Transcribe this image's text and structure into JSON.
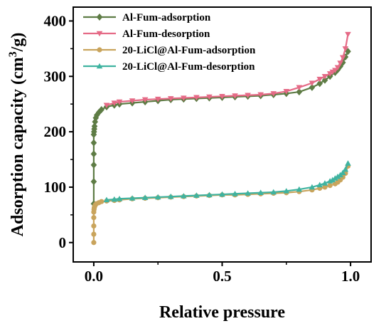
{
  "chart_data": {
    "type": "line",
    "xlabel": "Relative pressure",
    "ylabel_main": "Adsorption capacity (cm",
    "ylabel_sup": "3",
    "ylabel_tail": "/g)",
    "xlim": [
      -0.08,
      1.08
    ],
    "ylim": [
      -35,
      425
    ],
    "xticks": [
      0.0,
      0.5,
      1.0
    ],
    "xtick_labels": [
      "0.0",
      "0.5",
      "1.0"
    ],
    "yticks": [
      0,
      100,
      200,
      300,
      400
    ],
    "ytick_labels": [
      "0",
      "100",
      "200",
      "300",
      "400"
    ],
    "grid": false,
    "legend_position": "top-left",
    "series": [
      {
        "name": "Al-Fum-adsorption",
        "color": "#5e7c45",
        "marker": "diamond",
        "x": [
          0.0,
          0.0,
          0.0,
          0.0,
          0.0,
          0.0,
          0.001,
          0.002,
          0.003,
          0.005,
          0.008,
          0.012,
          0.02,
          0.03,
          0.05,
          0.08,
          0.1,
          0.15,
          0.2,
          0.25,
          0.3,
          0.35,
          0.4,
          0.45,
          0.5,
          0.55,
          0.6,
          0.65,
          0.7,
          0.75,
          0.8,
          0.85,
          0.88,
          0.9,
          0.92,
          0.94,
          0.95,
          0.96,
          0.97,
          0.98,
          0.99
        ],
        "y": [
          70,
          110,
          140,
          160,
          180,
          195,
          200,
          205,
          210,
          218,
          225,
          230,
          235,
          240,
          245,
          248,
          250,
          252,
          254,
          256,
          258,
          259,
          260,
          261,
          262,
          263,
          264,
          265,
          267,
          269,
          272,
          280,
          287,
          293,
          300,
          307,
          312,
          318,
          325,
          335,
          345
        ]
      },
      {
        "name": "Al-Fum-desorption",
        "color": "#e56a86",
        "marker": "triangle-down",
        "x": [
          0.99,
          0.98,
          0.97,
          0.96,
          0.95,
          0.94,
          0.93,
          0.92,
          0.9,
          0.88,
          0.85,
          0.8,
          0.75,
          0.7,
          0.65,
          0.6,
          0.55,
          0.5,
          0.45,
          0.4,
          0.35,
          0.3,
          0.25,
          0.2,
          0.15,
          0.1,
          0.08,
          0.05
        ],
        "y": [
          376,
          350,
          334,
          324,
          316,
          311,
          308,
          305,
          300,
          295,
          288,
          280,
          273,
          269,
          267,
          266,
          265,
          264,
          263,
          262,
          261,
          260,
          259,
          258,
          256,
          254,
          252,
          248
        ]
      },
      {
        "name": "20-LiCl@Al-Fum-adsorption",
        "color": "#c9a45c",
        "marker": "circle",
        "x": [
          0.0,
          0.0,
          0.0,
          0.0,
          0.0,
          0.001,
          0.002,
          0.004,
          0.006,
          0.01,
          0.02,
          0.03,
          0.05,
          0.08,
          0.1,
          0.15,
          0.2,
          0.25,
          0.3,
          0.35,
          0.4,
          0.45,
          0.5,
          0.55,
          0.6,
          0.65,
          0.7,
          0.75,
          0.8,
          0.85,
          0.88,
          0.9,
          0.92,
          0.94,
          0.95,
          0.96,
          0.97,
          0.98,
          0.99
        ],
        "y": [
          0,
          15,
          30,
          45,
          55,
          60,
          63,
          66,
          68,
          70,
          72,
          74,
          75,
          76,
          77,
          79,
          80,
          81,
          82,
          83,
          84,
          85,
          86,
          86,
          87,
          88,
          89,
          90,
          92,
          95,
          98,
          100,
          103,
          106,
          109,
          113,
          118,
          125,
          138
        ]
      },
      {
        "name": "20-LiCl@Al-Fum-desorption",
        "color": "#3fb3a0",
        "marker": "triangle-up",
        "x": [
          0.99,
          0.98,
          0.97,
          0.96,
          0.95,
          0.94,
          0.93,
          0.92,
          0.9,
          0.88,
          0.85,
          0.8,
          0.75,
          0.7,
          0.65,
          0.6,
          0.55,
          0.5,
          0.45,
          0.4,
          0.35,
          0.3,
          0.25,
          0.2,
          0.15,
          0.1,
          0.08,
          0.05
        ],
        "y": [
          143,
          132,
          126,
          122,
          119,
          116,
          113,
          111,
          107,
          104,
          100,
          96,
          93,
          91,
          90,
          89,
          88,
          87,
          86,
          85,
          84,
          83,
          82,
          81,
          80,
          79,
          78,
          77
        ]
      }
    ]
  }
}
